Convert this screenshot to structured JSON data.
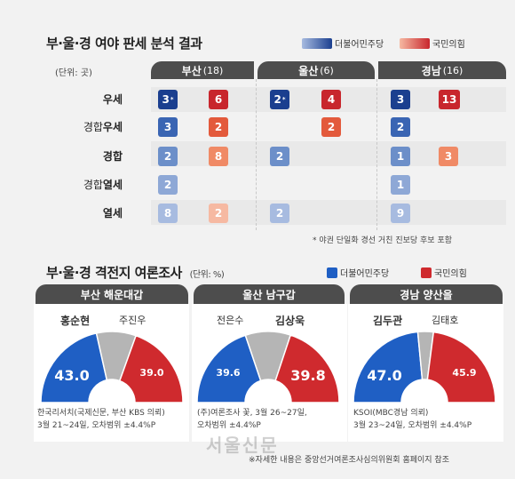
{
  "top": {
    "title": "부·울·경 여야 판세 분석 결과",
    "legend_dem": "더불어민주당",
    "legend_ppp": "국민의힘",
    "unit": "(단위: 곳)",
    "regions": [
      {
        "name": "부산",
        "count": "(18)"
      },
      {
        "name": "울산",
        "count": "(6)"
      },
      {
        "name": "경남",
        "count": "(16)"
      }
    ],
    "rows": [
      {
        "label": "우세",
        "bold": true
      },
      {
        "label_plain": "경합",
        "label_bold": "우세"
      },
      {
        "label": "경합",
        "bold": true
      },
      {
        "label_plain": "경합",
        "label_bold": "열세"
      },
      {
        "label": "열세",
        "bold": true
      }
    ],
    "note": "* 야권 단일화 경선 거친 진보당 후보 포함"
  },
  "chart_data": [
    {
      "type": "table",
      "title": "부·울·경 여야 판세 분석 결과",
      "unit": "곳",
      "columns": [
        "부산(18)",
        "울산(6)",
        "경남(16)"
      ],
      "rows": [
        "우세",
        "경합우세",
        "경합",
        "경합열세",
        "열세"
      ],
      "series": [
        {
          "name": "더불어민주당",
          "values": [
            [
              3,
              2,
              3
            ],
            [
              3,
              null,
              2
            ],
            [
              2,
              2,
              1
            ],
            [
              2,
              null,
              1
            ],
            [
              8,
              2,
              9
            ]
          ]
        },
        {
          "name": "국민의힘",
          "values": [
            [
              6,
              4,
              13
            ],
            [
              2,
              2,
              null
            ],
            [
              8,
              null,
              3
            ],
            [
              null,
              null,
              null
            ],
            [
              2,
              null,
              null
            ]
          ]
        }
      ],
      "annotations": [
        "3*",
        "2*"
      ]
    },
    {
      "type": "pie",
      "title": "부산 해운대갑",
      "categories": [
        "홍순현",
        "주진우"
      ],
      "values": [
        43.0,
        39.0
      ],
      "colors": [
        "#1f5fc4",
        "#cf2a2e"
      ]
    },
    {
      "type": "pie",
      "title": "울산 남구갑",
      "categories": [
        "전은수",
        "김상욱"
      ],
      "values": [
        39.6,
        39.8
      ],
      "colors": [
        "#1f5fc4",
        "#cf2a2e"
      ]
    },
    {
      "type": "pie",
      "title": "경남 양산을",
      "categories": [
        "김두관",
        "김태호"
      ],
      "values": [
        47.0,
        45.9
      ],
      "colors": [
        "#1f5fc4",
        "#cf2a2e"
      ]
    }
  ],
  "cells": [
    [
      {
        "v": "3",
        "c": "#1b3f8f",
        "star": "*"
      },
      {
        "v": "6",
        "c": "#c8262d"
      },
      {
        "v": "2",
        "c": "#1b3f8f",
        "star": "*"
      },
      {
        "v": "4",
        "c": "#c8262d"
      },
      {
        "v": "3",
        "c": "#1b3f8f"
      },
      {
        "v": "13",
        "c": "#c8262d"
      }
    ],
    [
      {
        "v": "3",
        "c": "#3a65b3"
      },
      {
        "v": "2",
        "c": "#e35a3c"
      },
      null,
      {
        "v": "2",
        "c": "#e35a3c"
      },
      {
        "v": "2",
        "c": "#3a65b3"
      },
      null
    ],
    [
      {
        "v": "2",
        "c": "#6c8fc9"
      },
      {
        "v": "8",
        "c": "#f08a66"
      },
      {
        "v": "2",
        "c": "#6c8fc9"
      },
      null,
      {
        "v": "1",
        "c": "#6c8fc9"
      },
      {
        "v": "3",
        "c": "#f08a66"
      }
    ],
    [
      {
        "v": "2",
        "c": "#8ea8d6"
      },
      null,
      null,
      null,
      {
        "v": "1",
        "c": "#8ea8d6"
      },
      null
    ],
    [
      {
        "v": "8",
        "c": "#a7bbe0"
      },
      {
        "v": "2",
        "c": "#f6b9a2"
      },
      {
        "v": "2",
        "c": "#a7bbe0"
      },
      null,
      {
        "v": "9",
        "c": "#a7bbe0"
      },
      null
    ]
  ],
  "bottom": {
    "title": "부·울·경 격전지 여론조사",
    "unit": "(단위: %)",
    "legend_dem": "더불어민주당",
    "legend_ppp": "국민의힘",
    "polls": [
      {
        "title": "부산 해운대갑",
        "left_name": "홍순현",
        "right_name": "주진우",
        "left_val": "43.0",
        "right_val": "39.0",
        "lead": "left",
        "src1": "한국리서치(국제신문, 부산 KBS 의뢰)",
        "src2": "3월 21~24일, 오차범위 ±4.4%P"
      },
      {
        "title": "울산 남구갑",
        "left_name": "전은수",
        "right_name": "김상욱",
        "left_val": "39.6",
        "right_val": "39.8",
        "lead": "right",
        "src1": "(주)여론조사 꽃, 3월 26~27일,",
        "src2": "오차범위 ±4.4%P"
      },
      {
        "title": "경남 양산을",
        "left_name": "김두관",
        "right_name": "김태호",
        "left_val": "47.0",
        "right_val": "45.9",
        "lead": "left",
        "src1": "KSOI(MBC경남 의뢰)",
        "src2": "3월 23~24일, 오차범위 ±4.4%P"
      }
    ],
    "footnote": "※자세한 내용은 중앙선거여론조사심의위원회 홈페이지 참조",
    "stamp": "서울신문"
  },
  "colors": {
    "dem": "#1f5fc4",
    "ppp": "#cf2a2e",
    "gray": "#b5b5b5",
    "header": "#4d4d4d"
  }
}
